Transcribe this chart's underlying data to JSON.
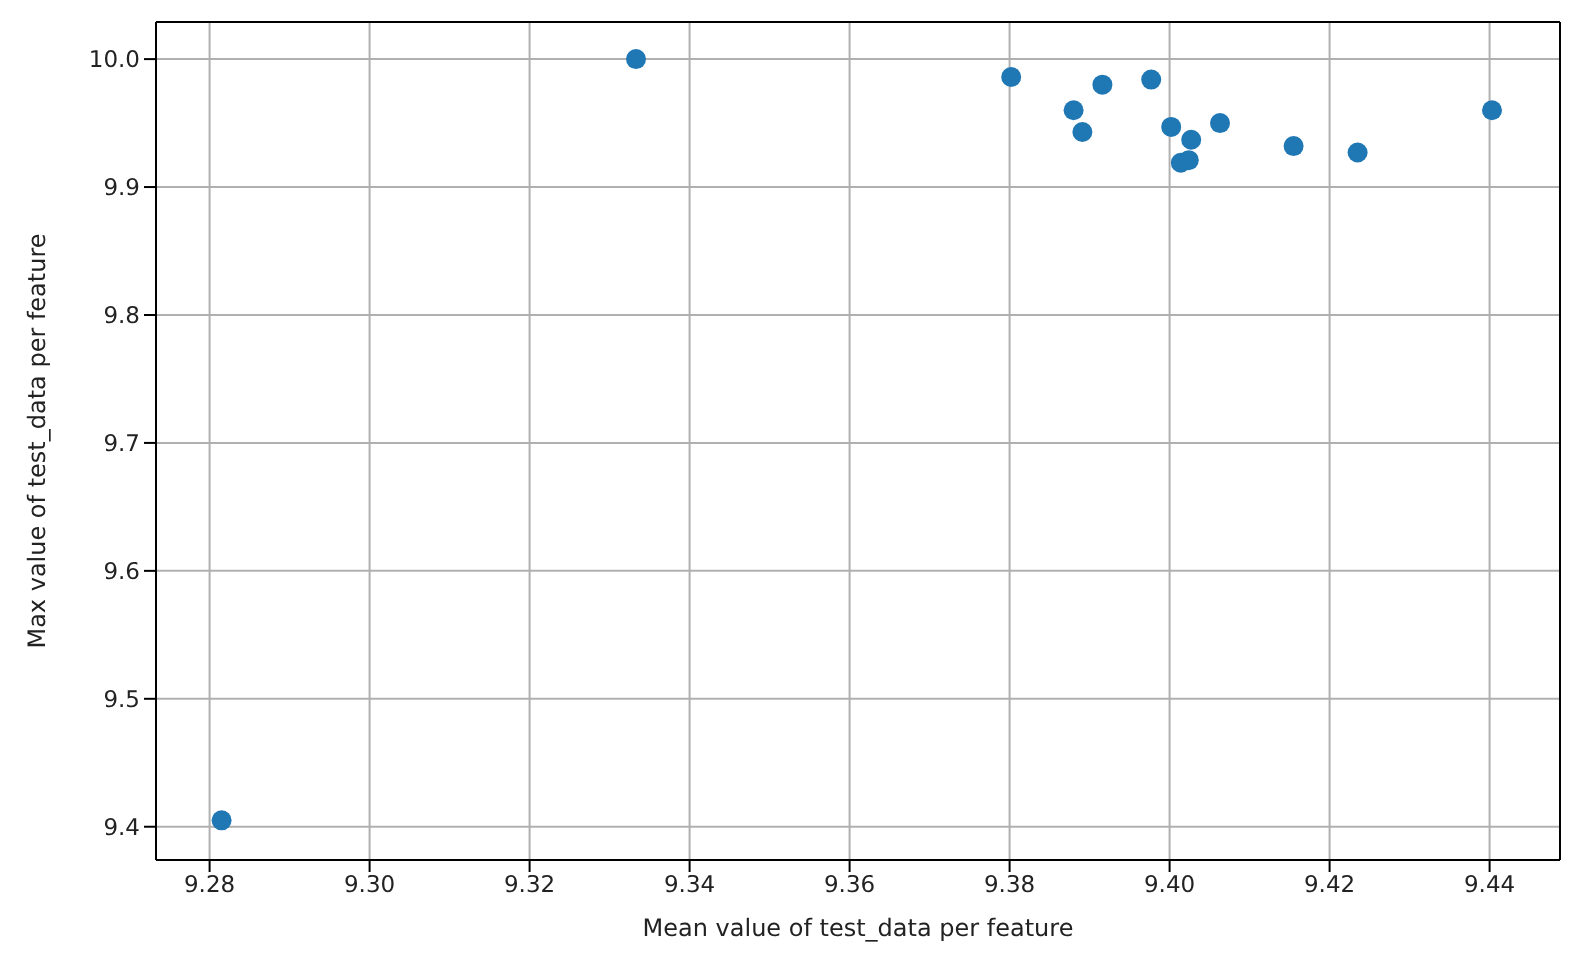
{
  "chart_data": {
    "type": "scatter",
    "xlabel": "Mean value of test_data per feature",
    "ylabel": "Max value of test_data per feature",
    "x": [
      9.2815,
      9.3333,
      9.3802,
      9.388,
      9.3891,
      9.3916,
      9.3977,
      9.4002,
      9.4027,
      9.4014,
      9.4024,
      9.4063,
      9.4155,
      9.4235,
      9.4403
    ],
    "series": [
      {
        "color": "#1f77b4",
        "values": [
          9.405,
          10.0,
          9.986,
          9.96,
          9.943,
          9.98,
          9.984,
          9.947,
          9.937,
          9.919,
          9.921,
          9.95,
          9.932,
          9.927,
          9.96
        ]
      }
    ],
    "xlim": [
      9.2733,
      9.4488
    ],
    "ylim": [
      9.374,
      10.029
    ],
    "xticks": [
      {
        "value": 9.28,
        "label": "9.28"
      },
      {
        "value": 9.3,
        "label": "9.30"
      },
      {
        "value": 9.32,
        "label": "9.32"
      },
      {
        "value": 9.34,
        "label": "9.34"
      },
      {
        "value": 9.36,
        "label": "9.36"
      },
      {
        "value": 9.38,
        "label": "9.38"
      },
      {
        "value": 9.4,
        "label": "9.40"
      },
      {
        "value": 9.42,
        "label": "9.42"
      },
      {
        "value": 9.44,
        "label": "9.44"
      }
    ],
    "yticks": [
      {
        "value": 9.4,
        "label": "9.4"
      },
      {
        "value": 9.5,
        "label": "9.5"
      },
      {
        "value": 9.6,
        "label": "9.6"
      },
      {
        "value": 9.7,
        "label": "9.7"
      },
      {
        "value": 9.8,
        "label": "9.8"
      },
      {
        "value": 9.9,
        "label": "9.9"
      },
      {
        "value": 10,
        "label": "10.0"
      }
    ],
    "grid": true,
    "marker": "circle"
  }
}
